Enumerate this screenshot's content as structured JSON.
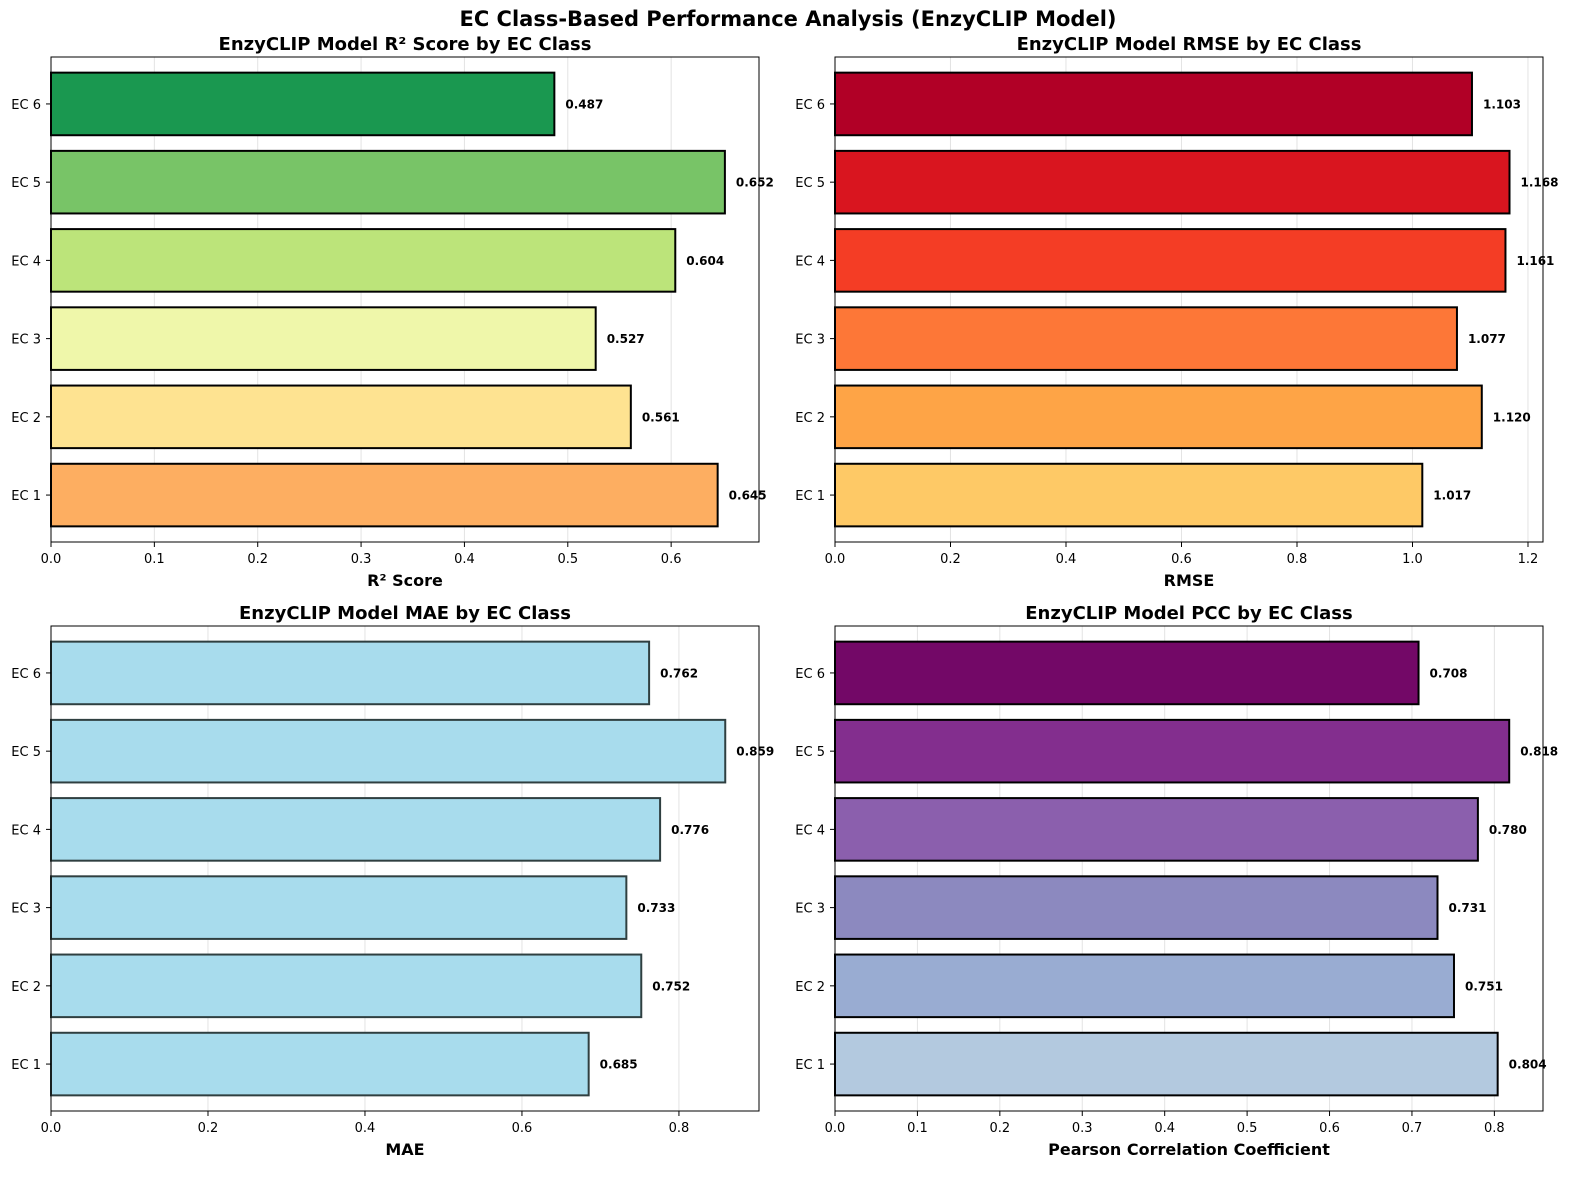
{
  "figure_title": "EC Class-Based Performance Analysis (EnzyCLIP Model)",
  "chart_data": [
    {
      "type": "bar",
      "orientation": "horizontal",
      "title": "EnzyCLIP Model R² Score by EC Class",
      "xlabel": "R² Score",
      "ylabel": "",
      "categories": [
        "EC 1",
        "EC 2",
        "EC 3",
        "EC 4",
        "EC 5",
        "EC 6"
      ],
      "values": [
        0.645,
        0.561,
        0.527,
        0.604,
        0.652,
        0.487
      ],
      "value_labels": [
        "0.645",
        "0.561",
        "0.527",
        "0.604",
        "0.652",
        "0.487"
      ],
      "colors": [
        "#fdae61",
        "#fee391",
        "#eff7aa",
        "#bce47a",
        "#78c467",
        "#1a9850"
      ],
      "edge_color": "#000000",
      "xlim": [
        0,
        0.685
      ],
      "xticks": [
        0,
        0.1,
        0.2,
        0.3,
        0.4,
        0.5,
        0.6
      ],
      "xtick_labels": [
        "0.0",
        "0.1",
        "0.2",
        "0.3",
        "0.4",
        "0.5",
        "0.6"
      ],
      "grid": "x"
    },
    {
      "type": "bar",
      "orientation": "horizontal",
      "title": "EnzyCLIP Model RMSE by EC Class",
      "xlabel": "RMSE",
      "ylabel": "",
      "categories": [
        "EC 1",
        "EC 2",
        "EC 3",
        "EC 4",
        "EC 5",
        "EC 6"
      ],
      "values": [
        1.017,
        1.12,
        1.077,
        1.161,
        1.168,
        1.103
      ],
      "value_labels": [
        "1.017",
        "1.120",
        "1.077",
        "1.161",
        "1.168",
        "1.103"
      ],
      "colors": [
        "#fec966",
        "#fea446",
        "#fd7737",
        "#f43d25",
        "#d9151f",
        "#b10026"
      ],
      "edge_color": "#000000",
      "xlim": [
        0,
        1.226
      ],
      "xticks": [
        0,
        0.2,
        0.4,
        0.6,
        0.8,
        1.0,
        1.2
      ],
      "xtick_labels": [
        "0.0",
        "0.2",
        "0.4",
        "0.6",
        "0.8",
        "1.0",
        "1.2"
      ],
      "grid": "x"
    },
    {
      "type": "bar",
      "orientation": "horizontal",
      "title": "EnzyCLIP Model MAE by EC Class",
      "xlabel": "MAE",
      "ylabel": "",
      "categories": [
        "EC 1",
        "EC 2",
        "EC 3",
        "EC 4",
        "EC 5",
        "EC 6"
      ],
      "values": [
        0.685,
        0.752,
        0.733,
        0.776,
        0.859,
        0.762
      ],
      "value_labels": [
        "0.685",
        "0.752",
        "0.733",
        "0.776",
        "0.859",
        "0.762"
      ],
      "colors": [
        "#a8dced",
        "#a8dced",
        "#a8dced",
        "#a8dced",
        "#a8dced",
        "#a8dced"
      ],
      "edge_color": "#2f3f40",
      "xlim": [
        0,
        0.902
      ],
      "xticks": [
        0,
        0.2,
        0.4,
        0.6,
        0.8
      ],
      "xtick_labels": [
        "0.0",
        "0.2",
        "0.4",
        "0.6",
        "0.8"
      ],
      "grid": "x"
    },
    {
      "type": "bar",
      "orientation": "horizontal",
      "title": "EnzyCLIP Model PCC by EC Class",
      "xlabel": "Pearson Correlation Coefficient",
      "ylabel": "",
      "categories": [
        "EC 1",
        "EC 2",
        "EC 3",
        "EC 4",
        "EC 5",
        "EC 6"
      ],
      "values": [
        0.804,
        0.751,
        0.731,
        0.78,
        0.818,
        0.708
      ],
      "value_labels": [
        "0.804",
        "0.751",
        "0.731",
        "0.780",
        "0.818",
        "0.708"
      ],
      "colors": [
        "#b3c9df",
        "#99acd2",
        "#8c89bf",
        "#8b5fad",
        "#832e8e",
        "#730867"
      ],
      "edge_color": "#000000",
      "xlim": [
        0,
        0.859
      ],
      "xticks": [
        0,
        0.1,
        0.2,
        0.3,
        0.4,
        0.5,
        0.6,
        0.7,
        0.8
      ],
      "xtick_labels": [
        "0.0",
        "0.1",
        "0.2",
        "0.3",
        "0.4",
        "0.5",
        "0.6",
        "0.7",
        "0.8"
      ],
      "grid": "x"
    }
  ]
}
